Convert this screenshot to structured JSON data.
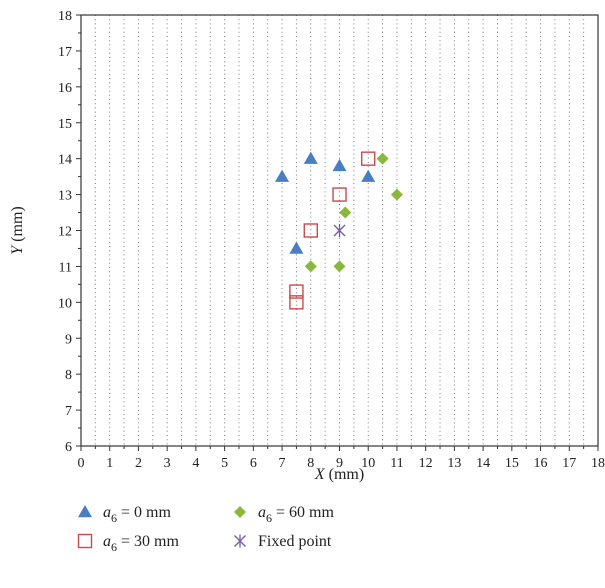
{
  "chart_data": {
    "type": "scatter",
    "xlabel": {
      "main": "X",
      "unit": " (mm)"
    },
    "ylabel": {
      "main": "Y",
      "unit": " (mm)"
    },
    "xlim": [
      0,
      18
    ],
    "ylim": [
      6,
      18
    ],
    "x_ticks": [
      "0",
      "1",
      "2",
      "3",
      "4",
      "5",
      "6",
      "7",
      "8",
      "9",
      "10",
      "11",
      "12",
      "13",
      "14",
      "15",
      "16",
      "17",
      "18"
    ],
    "y_ticks": [
      "6",
      "7",
      "8",
      "9",
      "10",
      "11",
      "12",
      "13",
      "14",
      "15",
      "16",
      "17",
      "18"
    ],
    "grid": "dotted",
    "legend_position": "bottom",
    "series": [
      {
        "legend": {
          "var": "a",
          "sub": "6",
          "rest": " = 0 mm"
        },
        "marker": "triangle",
        "color": "#4a7ec2",
        "points": [
          [
            7,
            13.5
          ],
          [
            8,
            14
          ],
          [
            9,
            13.8
          ],
          [
            10,
            13.5
          ],
          [
            7.5,
            11.5
          ]
        ]
      },
      {
        "legend": {
          "var": "a",
          "sub": "6",
          "rest": " = 30 mm"
        },
        "marker": "square-open",
        "color": "#c84a4a",
        "points": [
          [
            10,
            14
          ],
          [
            9,
            13
          ],
          [
            8,
            12
          ],
          [
            7.5,
            10.3
          ],
          [
            7.5,
            10
          ]
        ]
      },
      {
        "legend": {
          "var": "a",
          "sub": "6",
          "rest": " = 60 mm"
        },
        "marker": "diamond",
        "color": "#8ab83c",
        "points": [
          [
            10.5,
            14
          ],
          [
            11,
            13
          ],
          [
            9.2,
            12.5
          ],
          [
            8,
            11
          ],
          [
            9,
            11
          ]
        ]
      },
      {
        "legend": {
          "var": "",
          "sub": "",
          "rest": "Fixed point"
        },
        "marker": "asterisk",
        "color": "#7a5aa8",
        "points": [
          [
            9,
            12
          ]
        ]
      }
    ]
  }
}
